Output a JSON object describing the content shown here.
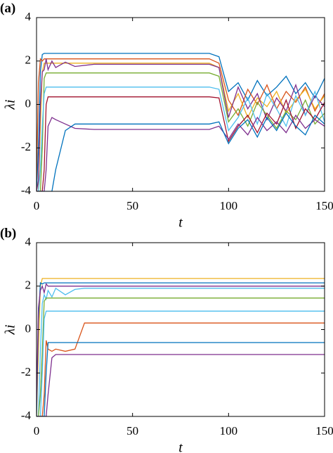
{
  "chart_data": [
    {
      "type": "line",
      "panel": "(a)",
      "xlabel": "t",
      "ylabel": "λi",
      "xlim": [
        0,
        150
      ],
      "ylim": [
        -4,
        4
      ],
      "xticks": [
        0,
        50,
        100,
        150
      ],
      "yticks": [
        -4,
        -2,
        0,
        2,
        4
      ],
      "x": [
        0,
        1,
        2,
        3,
        4,
        5,
        6,
        8,
        10,
        15,
        20,
        30,
        40,
        50,
        60,
        70,
        80,
        90,
        95,
        100,
        105,
        110,
        115,
        120,
        125,
        130,
        135,
        140,
        145,
        150
      ],
      "series": [
        {
          "color": "#0072BD",
          "values": [
            -4,
            -2,
            1.5,
            2.3,
            2.35,
            2.35,
            2.35,
            2.35,
            2.35,
            2.35,
            2.35,
            2.35,
            2.35,
            2.35,
            2.35,
            2.35,
            2.35,
            2.35,
            2.2,
            0.6,
            1.0,
            0.2,
            1.1,
            0.4,
            0.8,
            1.3,
            0.5,
            1.0,
            0.3,
            1.2
          ]
        },
        {
          "color": "#D95319",
          "values": [
            -3.5,
            1,
            2.1,
            2.0,
            2.1,
            2.1,
            2.1,
            2.1,
            2.1,
            2.1,
            2.1,
            2.1,
            2.1,
            2.1,
            2.1,
            2.1,
            2.1,
            2.1,
            1.9,
            0.2,
            -0.5,
            0.7,
            0.0,
            0.9,
            -0.2,
            0.6,
            0.1,
            0.8,
            -0.3,
            0.5
          ]
        },
        {
          "color": "#EDB120",
          "values": [
            -4,
            -4,
            -1,
            1.5,
            1.9,
            1.9,
            1.9,
            1.9,
            1.9,
            1.9,
            1.9,
            1.9,
            1.9,
            1.9,
            1.9,
            1.9,
            1.9,
            1.9,
            1.7,
            -0.3,
            0.5,
            -0.6,
            0.3,
            -0.1,
            0.6,
            -0.4,
            0.2,
            0.7,
            -0.2,
            0.4
          ]
        },
        {
          "color": "#7E2F8E",
          "values": [
            -4,
            -3.5,
            0,
            1.5,
            1.6,
            2.1,
            1.6,
            2.0,
            1.7,
            1.95,
            1.75,
            1.85,
            1.85,
            1.85,
            1.85,
            1.85,
            1.85,
            1.85,
            1.7,
            -0.6,
            0.8,
            -0.2,
            0.5,
            -0.7,
            0.3,
            -0.3,
            0.9,
            -0.5,
            0.4,
            -0.1
          ]
        },
        {
          "color": "#77AC30",
          "values": [
            -4,
            -4,
            -4,
            -2,
            1.2,
            1.45,
            1.45,
            1.45,
            1.45,
            1.45,
            1.45,
            1.45,
            1.45,
            1.45,
            1.45,
            1.45,
            1.45,
            1.45,
            1.3,
            -0.8,
            -0.2,
            -1.0,
            0.1,
            -0.5,
            -1.1,
            -0.3,
            -0.7,
            0.2,
            -0.9,
            -0.4
          ]
        },
        {
          "color": "#4DBEEE",
          "values": [
            -4,
            -4,
            -3,
            -1,
            0.5,
            0.8,
            0.8,
            0.8,
            0.8,
            0.8,
            0.8,
            0.8,
            0.8,
            0.8,
            0.8,
            0.8,
            0.8,
            0.8,
            0.7,
            -1.2,
            -0.6,
            0.3,
            -0.9,
            0.5,
            -0.2,
            -1.0,
            0.4,
            -0.5,
            0.6,
            -0.8
          ]
        },
        {
          "color": "#A2142F",
          "values": [
            -4,
            -4,
            -4,
            -4,
            -3,
            0,
            0.35,
            0.35,
            0.35,
            0.35,
            0.35,
            0.35,
            0.35,
            0.35,
            0.35,
            0.35,
            0.35,
            0.35,
            0.3,
            -1.7,
            -1.0,
            -0.5,
            -1.3,
            -0.4,
            -0.9,
            0.2,
            -1.1,
            -0.2,
            -0.7,
            0.1
          ]
        },
        {
          "color": "#7E2F8E",
          "values": [
            -4,
            -4,
            -4,
            -4,
            -4,
            -3,
            -1,
            -0.6,
            -0.7,
            -0.9,
            -1.1,
            -1.15,
            -1.15,
            -1.15,
            -1.15,
            -1.15,
            -1.15,
            -1.15,
            -1.0,
            -1.6,
            -0.9,
            -1.4,
            -0.6,
            -1.2,
            -0.8,
            -1.3,
            -0.5,
            -1.1,
            -0.7,
            -1.0
          ]
        },
        {
          "color": "#0072BD",
          "values": [
            -4,
            -4,
            -4,
            -4,
            -4,
            -4,
            -4,
            -4,
            -3,
            -1.2,
            -0.9,
            -0.9,
            -0.9,
            -0.9,
            -0.9,
            -0.9,
            -0.9,
            -0.9,
            -0.8,
            -1.8,
            -1.1,
            -0.7,
            -1.5,
            -0.6,
            -1.2,
            -0.4,
            -1.0,
            -1.4,
            -0.5,
            -0.9
          ]
        }
      ]
    },
    {
      "type": "line",
      "panel": "(b)",
      "xlabel": "t",
      "ylabel": "λi",
      "xlim": [
        0,
        150
      ],
      "ylim": [
        -4,
        4
      ],
      "xticks": [
        0,
        50,
        100,
        150
      ],
      "yticks": [
        -4,
        -2,
        0,
        2,
        4
      ],
      "x": [
        0,
        1,
        2,
        3,
        4,
        5,
        6,
        8,
        10,
        15,
        20,
        25,
        30,
        50,
        100,
        150
      ],
      "series": [
        {
          "color": "#EDB120",
          "values": [
            -4,
            -1,
            2.0,
            2.35,
            2.35,
            2.35,
            2.35,
            2.35,
            2.35,
            2.35,
            2.35,
            2.35,
            2.35,
            2.35,
            2.35,
            2.35
          ]
        },
        {
          "color": "#0072BD",
          "values": [
            -4,
            0.5,
            2.15,
            2.1,
            2.15,
            2.15,
            2.15,
            2.15,
            2.15,
            2.15,
            2.15,
            2.15,
            2.15,
            2.15,
            2.15,
            2.15
          ]
        },
        {
          "color": "#7E2F8E",
          "values": [
            -3.5,
            1,
            1.8,
            2.0,
            1.7,
            2.1,
            2.0,
            2.0,
            2.0,
            2.0,
            2.0,
            2.0,
            2.0,
            2.0,
            2.0,
            2.0
          ]
        },
        {
          "color": "#4DBEEE",
          "values": [
            -4,
            -4,
            -1,
            1.2,
            1.6,
            1.4,
            1.8,
            1.5,
            1.9,
            1.6,
            1.85,
            1.9,
            1.9,
            1.9,
            1.9,
            1.9
          ]
        },
        {
          "color": "#77AC30",
          "values": [
            -4,
            -4,
            -3,
            -1,
            1.3,
            1.45,
            1.45,
            1.45,
            1.45,
            1.45,
            1.45,
            1.45,
            1.45,
            1.45,
            1.45,
            1.45
          ]
        },
        {
          "color": "#4DBEEE",
          "values": [
            -4,
            -4,
            -4,
            -2,
            0.5,
            0.85,
            0.85,
            0.85,
            0.85,
            0.85,
            0.85,
            0.85,
            0.85,
            0.85,
            0.85,
            0.85
          ]
        },
        {
          "color": "#D95319",
          "values": [
            -4,
            -4,
            -4,
            -4,
            -3,
            -0.5,
            -0.9,
            -1.0,
            -0.9,
            -1.0,
            -0.9,
            0.3,
            0.3,
            0.3,
            0.3,
            0.3
          ]
        },
        {
          "color": "#0072BD",
          "values": [
            -4,
            -4,
            -4,
            -4,
            -4,
            -2,
            -0.6,
            -0.6,
            -0.6,
            -0.6,
            -0.6,
            -0.6,
            -0.6,
            -0.6,
            -0.6,
            -0.6
          ]
        },
        {
          "color": "#7E2F8E",
          "values": [
            -4,
            -4,
            -4,
            -4,
            -4,
            -4,
            -3,
            -1.3,
            -1.15,
            -1.15,
            -1.15,
            -1.15,
            -1.15,
            -1.15,
            -1.15,
            -1.15
          ]
        }
      ]
    }
  ]
}
